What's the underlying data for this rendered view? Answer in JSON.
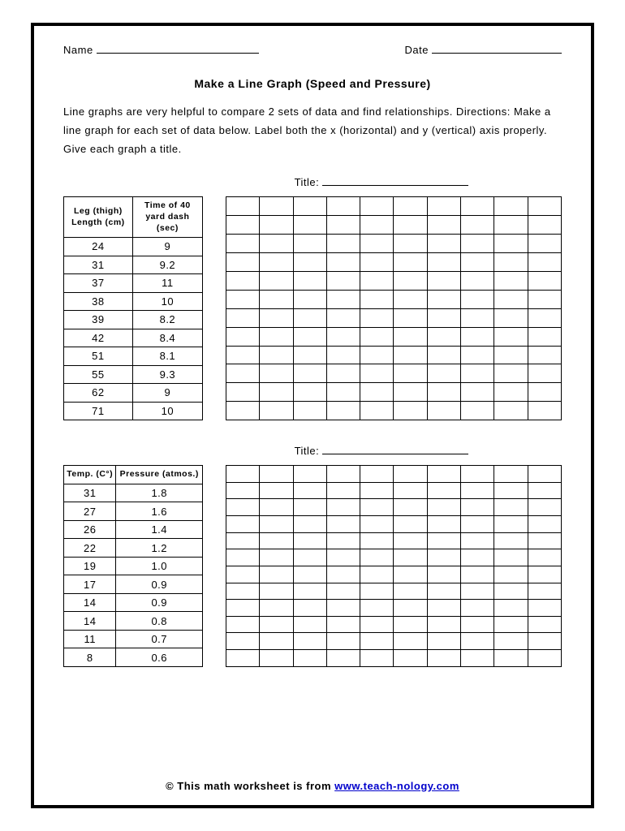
{
  "header": {
    "name_label": "Name",
    "date_label": "Date"
  },
  "title": "Make a Line Graph (Speed and Pressure)",
  "directions": "Line graphs are very helpful to compare 2 sets of data and find relationships. Directions: Make a line graph for each set of data below. Label both the x (horizontal) and y (vertical) axis properly. Give each graph a title.",
  "graph_title_label": "Title:",
  "table1": {
    "col1_header": "Leg (thigh) Length (cm)",
    "col2_header": "Time of 40 yard dash (sec)",
    "rows": [
      [
        "24",
        "9"
      ],
      [
        "31",
        "9.2"
      ],
      [
        "37",
        "11"
      ],
      [
        "38",
        "10"
      ],
      [
        "39",
        "8.2"
      ],
      [
        "42",
        "8.4"
      ],
      [
        "51",
        "8.1"
      ],
      [
        "55",
        "9.3"
      ],
      [
        "62",
        "9"
      ],
      [
        "71",
        "10"
      ]
    ]
  },
  "table2": {
    "col1_header": "Temp. (C°)",
    "col2_header": "Pressure (atmos.)",
    "rows": [
      [
        "31",
        "1.8"
      ],
      [
        "27",
        "1.6"
      ],
      [
        "26",
        "1.4"
      ],
      [
        "22",
        "1.2"
      ],
      [
        "19",
        "1.0"
      ],
      [
        "17",
        "0.9"
      ],
      [
        "14",
        "0.9"
      ],
      [
        "14",
        "0.8"
      ],
      [
        "11",
        "0.7"
      ],
      [
        "8",
        "0.6"
      ]
    ]
  },
  "grid": {
    "rows": 12,
    "cols": 10
  },
  "footer": {
    "prefix": "© This math worksheet is from ",
    "link_text": "www.teach-nology.com"
  }
}
